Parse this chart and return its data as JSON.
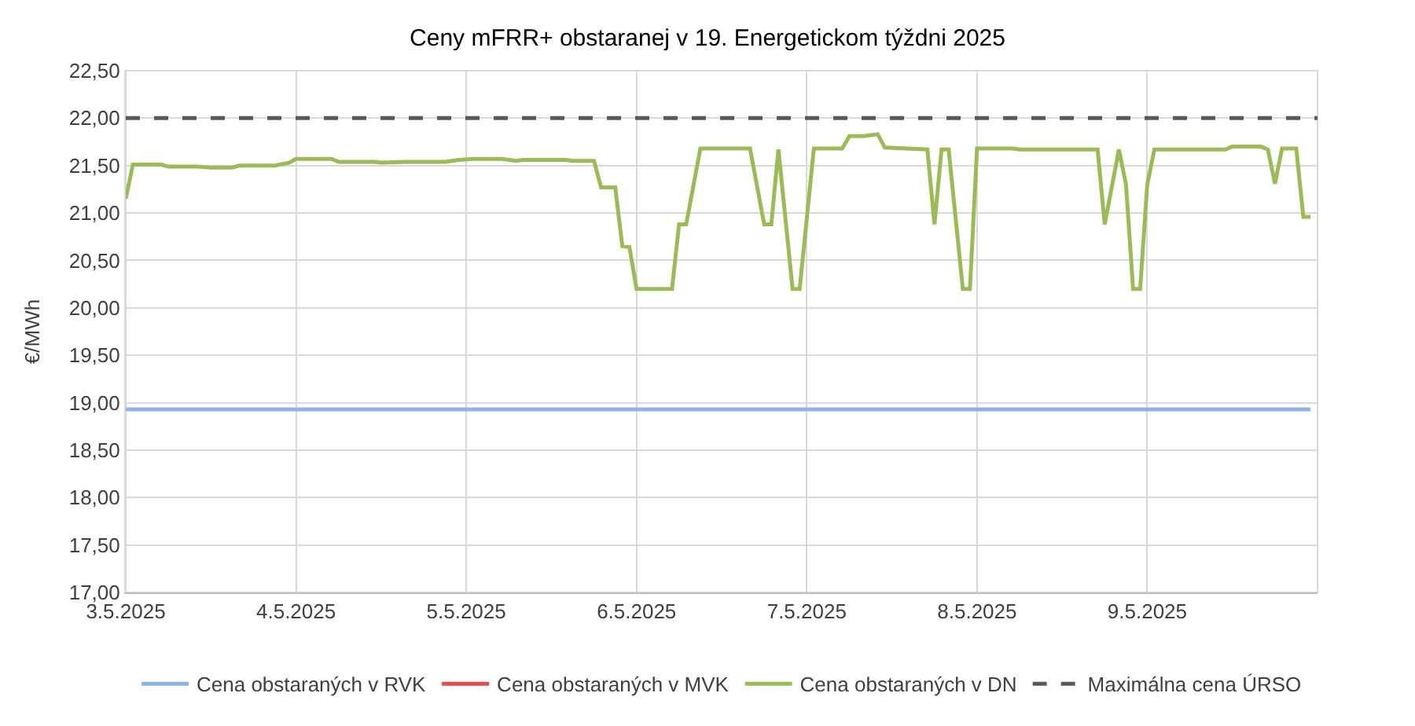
{
  "chart_data": {
    "type": "line",
    "title": "Ceny mFRR+ obstaranej v 19. Energetickom týždni 2025",
    "ylabel": "€/MWh",
    "xlim": [
      "2025-05-03T00:00",
      "2025-05-10T00:00"
    ],
    "xticks": [
      {
        "value": "2025-05-03",
        "label": "3.5.2025"
      },
      {
        "value": "2025-05-04",
        "label": "4.5.2025"
      },
      {
        "value": "2025-05-05",
        "label": "5.5.2025"
      },
      {
        "value": "2025-05-06",
        "label": "6.5.2025"
      },
      {
        "value": "2025-05-07",
        "label": "7.5.2025"
      },
      {
        "value": "2025-05-08",
        "label": "8.5.2025"
      },
      {
        "value": "2025-05-09",
        "label": "9.5.2025"
      }
    ],
    "ylim": [
      17,
      22.5
    ],
    "yticks": [
      {
        "value": 17,
        "label": "17,00"
      },
      {
        "value": 17.5,
        "label": "17,50"
      },
      {
        "value": 18,
        "label": "18,00"
      },
      {
        "value": 18.5,
        "label": "18,50"
      },
      {
        "value": 19,
        "label": "19,00"
      },
      {
        "value": 19.5,
        "label": "19,50"
      },
      {
        "value": 20,
        "label": "20,00"
      },
      {
        "value": 20.5,
        "label": "20,50"
      },
      {
        "value": 21,
        "label": "21,00"
      },
      {
        "value": 21.5,
        "label": "21,50"
      },
      {
        "value": 22,
        "label": "22,00"
      },
      {
        "value": 22.5,
        "label": "22,50"
      }
    ],
    "grid": true,
    "legend": "bottom",
    "marker": "none",
    "series": [
      {
        "name": "Cena obstaraných v RVK",
        "color": "#8eb4e3",
        "line_style": "solid",
        "x": [
          "2025-05-03T00:00",
          "2025-05-09T23:00"
        ],
        "values": [
          18.93,
          18.93
        ]
      },
      {
        "name": "Cena obstaraných v MVK",
        "color": "#e04b4b",
        "line_style": "solid"
      },
      {
        "name": "Cena obstaraných v DN",
        "color": "#9bbb59",
        "line_style": "solid",
        "x": [
          "2025-05-03T00:00",
          "2025-05-03T01:00",
          "2025-05-03T05:00",
          "2025-05-03T06:00",
          "2025-05-03T10:00",
          "2025-05-03T12:00",
          "2025-05-03T15:00",
          "2025-05-03T16:00",
          "2025-05-03T21:00",
          "2025-05-03T23:00",
          "2025-05-04T00:00",
          "2025-05-04T05:00",
          "2025-05-04T06:00",
          "2025-05-04T11:00",
          "2025-05-04T12:00",
          "2025-05-04T16:00",
          "2025-05-04T21:00",
          "2025-05-04T23:00",
          "2025-05-05T01:00",
          "2025-05-05T05:00",
          "2025-05-05T07:00",
          "2025-05-05T08:00",
          "2025-05-05T14:00",
          "2025-05-05T15:00",
          "2025-05-05T18:00",
          "2025-05-05T19:00",
          "2025-05-05T21:00",
          "2025-05-05T22:00",
          "2025-05-05T23:00",
          "2025-05-06T00:00",
          "2025-05-06T05:00",
          "2025-05-06T06:00",
          "2025-05-06T07:00",
          "2025-05-06T09:00",
          "2025-05-06T16:00",
          "2025-05-06T18:00",
          "2025-05-06T19:00",
          "2025-05-06T20:00",
          "2025-05-06T22:00",
          "2025-05-06T23:00",
          "2025-05-07T01:00",
          "2025-05-07T05:00",
          "2025-05-07T06:00",
          "2025-05-07T08:00",
          "2025-05-07T10:00",
          "2025-05-07T11:00",
          "2025-05-07T17:00",
          "2025-05-07T18:00",
          "2025-05-07T19:00",
          "2025-05-07T20:00",
          "2025-05-07T22:00",
          "2025-05-07T23:00",
          "2025-05-08T00:00",
          "2025-05-08T05:00",
          "2025-05-08T06:00",
          "2025-05-08T17:00",
          "2025-05-08T18:00",
          "2025-05-08T20:00",
          "2025-05-08T21:00",
          "2025-05-08T22:00",
          "2025-05-08T23:00",
          "2025-05-09T00:00",
          "2025-05-09T01:00",
          "2025-05-09T05:00",
          "2025-05-09T11:00",
          "2025-05-09T12:00",
          "2025-05-09T16:00",
          "2025-05-09T17:00",
          "2025-05-09T18:00",
          "2025-05-09T19:00",
          "2025-05-09T21:00",
          "2025-05-09T22:00",
          "2025-05-09T23:00"
        ],
        "values": [
          21.15,
          21.51,
          21.51,
          21.49,
          21.49,
          21.48,
          21.48,
          21.5,
          21.5,
          21.53,
          21.57,
          21.57,
          21.54,
          21.54,
          21.53,
          21.54,
          21.54,
          21.56,
          21.57,
          21.57,
          21.55,
          21.56,
          21.56,
          21.55,
          21.55,
          21.27,
          21.27,
          20.65,
          20.64,
          20.2,
          20.2,
          20.88,
          20.88,
          21.68,
          21.68,
          20.88,
          20.88,
          21.67,
          20.2,
          20.2,
          21.68,
          21.68,
          21.81,
          21.81,
          21.83,
          21.69,
          21.67,
          20.88,
          21.67,
          21.67,
          20.2,
          20.2,
          21.68,
          21.68,
          21.67,
          21.67,
          20.88,
          21.67,
          21.3,
          20.2,
          20.2,
          21.3,
          21.67,
          21.67,
          21.67,
          21.7,
          21.7,
          21.67,
          21.31,
          21.68,
          21.68,
          20.96,
          20.96
        ]
      },
      {
        "name": "Maximálna cena ÚRSO",
        "color": "#595959",
        "line_style": "dashed",
        "x": [
          "2025-05-03T00:00",
          "2025-05-10T00:00"
        ],
        "values": [
          22,
          22
        ]
      }
    ]
  }
}
